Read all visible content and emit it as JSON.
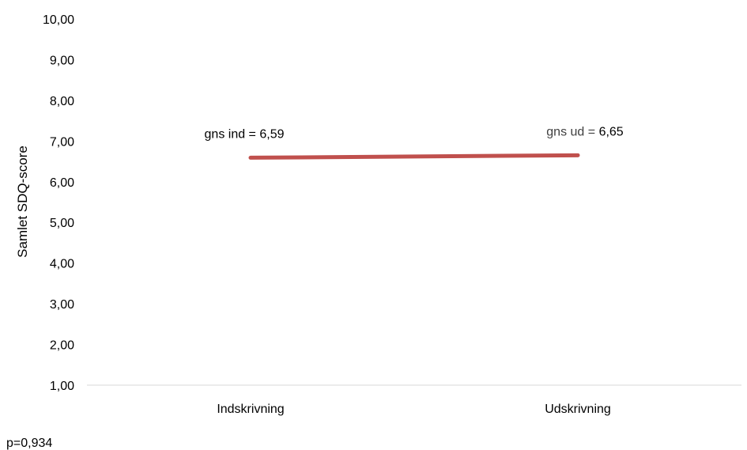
{
  "chart_data": {
    "type": "line",
    "categories": [
      "Indskrivning",
      "Udskrivning"
    ],
    "series": [
      {
        "values": [
          6.59,
          6.65
        ]
      }
    ],
    "ylabel": "Samlet SDQ-score",
    "xlabel": "",
    "ylim": [
      1,
      10
    ],
    "yticks": [
      "1,00",
      "2,00",
      "3,00",
      "4,00",
      "5,00",
      "6,00",
      "7,00",
      "8,00",
      "9,00",
      "10,00"
    ],
    "annotations": [
      {
        "prefix": "gns ind = ",
        "value": "6,59"
      },
      {
        "prefix": "gns ud = ",
        "value": "6,65"
      }
    ],
    "footnote": "p=0,934",
    "grid": false,
    "colors": {
      "line": "#C0504D",
      "axis": "#D9D9D9"
    }
  }
}
